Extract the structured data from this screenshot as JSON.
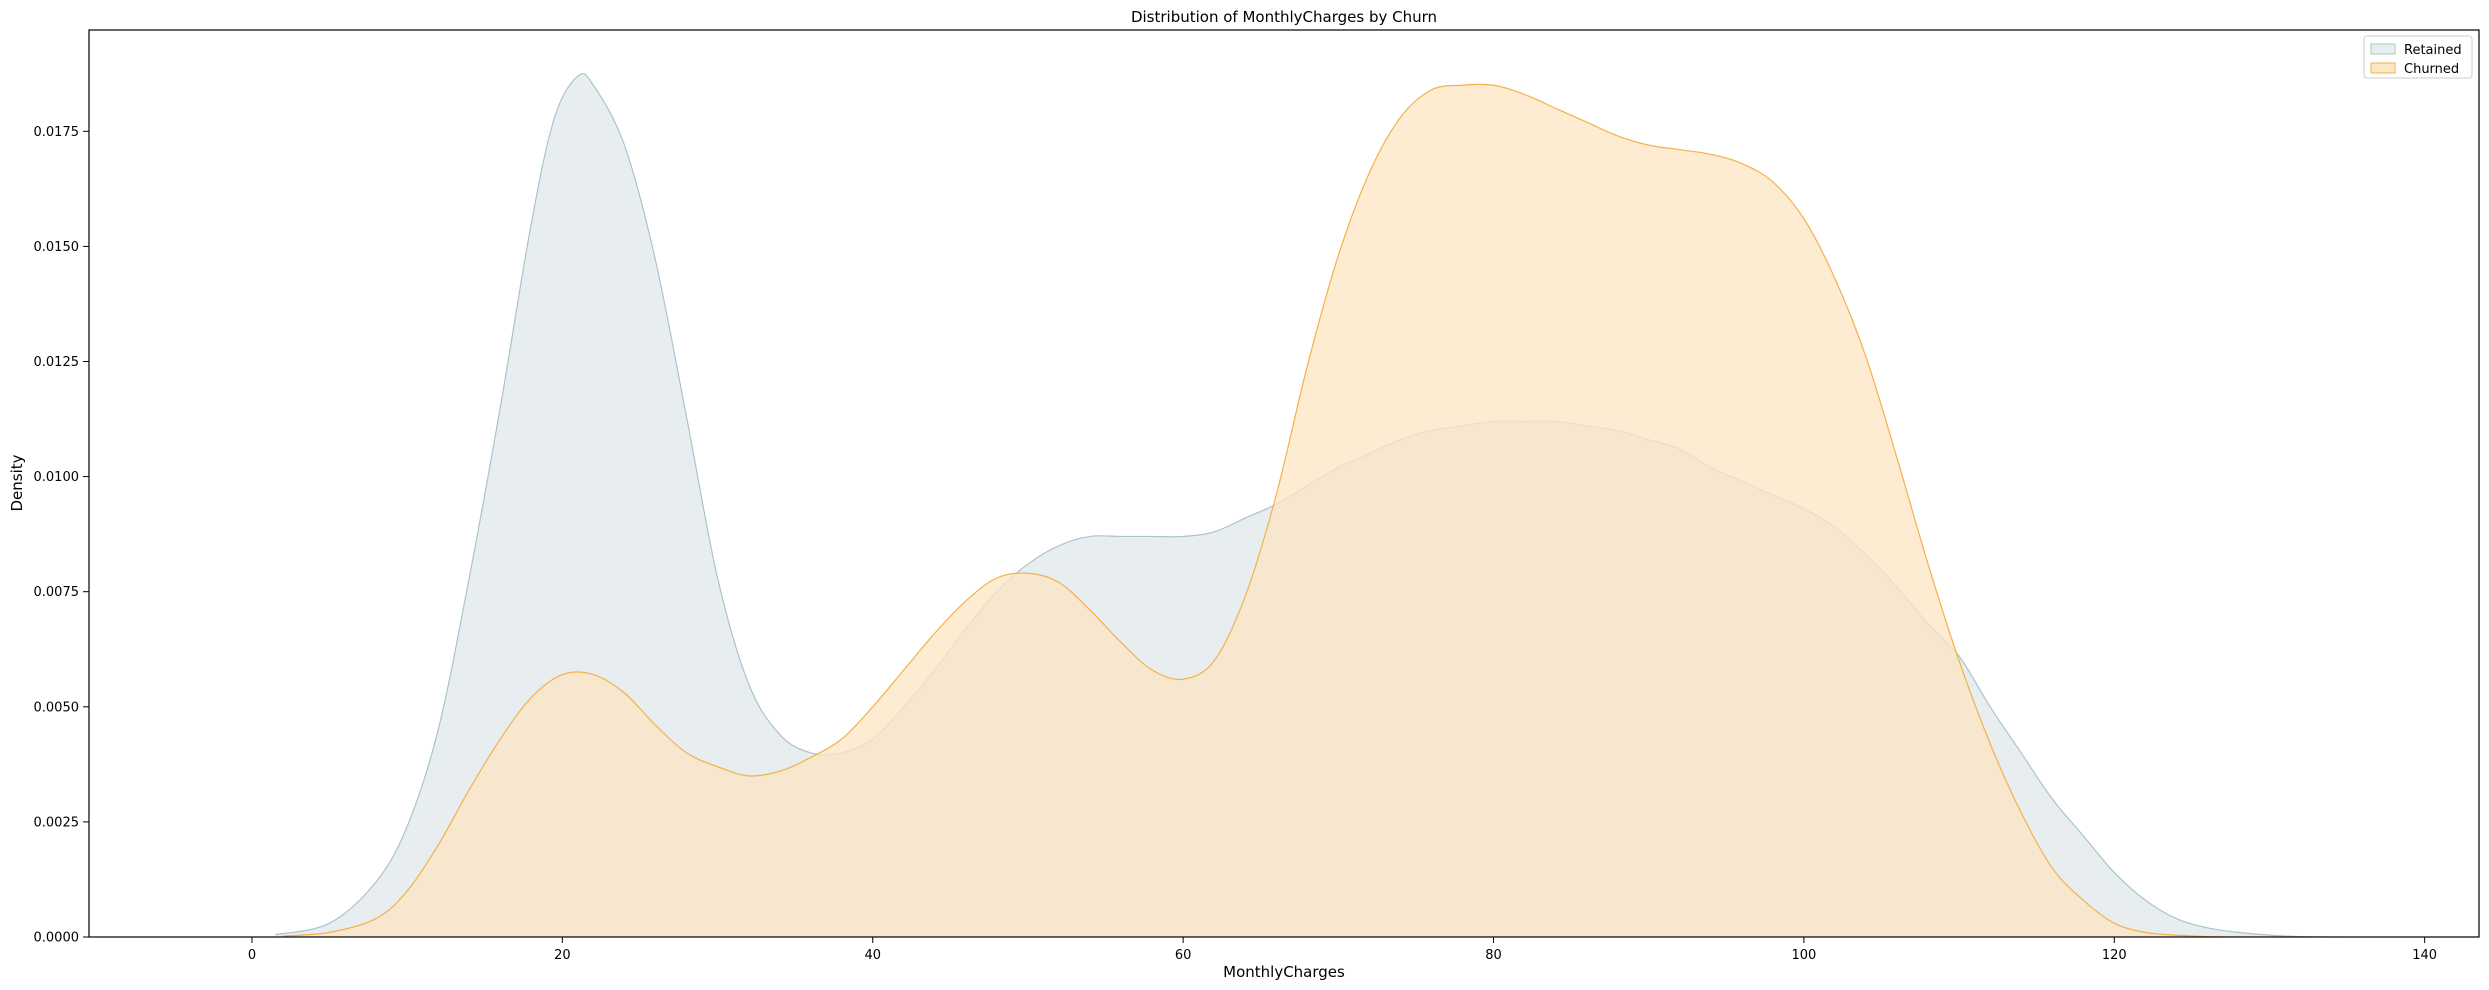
{
  "chart_data": {
    "type": "area",
    "title": "Distribution of MonthlyCharges by Churn",
    "xlabel": "MonthlyCharges",
    "ylabel": "Density",
    "xlim": [
      -10.5,
      143.5
    ],
    "ylim": [
      0,
      0.0197
    ],
    "xticks": [
      0,
      20,
      40,
      60,
      80,
      100,
      120,
      140
    ],
    "yticks": [
      0.0,
      0.0025,
      0.005,
      0.0075,
      0.01,
      0.0125,
      0.015,
      0.0175
    ],
    "ytick_labels": [
      "0.0000",
      "0.0025",
      "0.0050",
      "0.0075",
      "0.0100",
      "0.0125",
      "0.0150",
      "0.0175"
    ],
    "grid": false,
    "legend_position": "top-right",
    "series": [
      {
        "name": "Retained",
        "fill": "#e8eef0",
        "stroke": "#a9c4cb",
        "x": [
          1.5,
          5,
          8,
          10,
          12,
          14,
          16,
          18,
          19.5,
          21,
          22,
          24,
          26,
          28,
          30,
          32,
          34,
          36,
          38,
          40,
          42,
          44,
          46,
          48,
          50,
          52,
          54,
          56,
          58,
          60,
          62,
          64,
          66,
          68,
          70,
          72,
          74,
          76,
          78,
          80,
          82,
          84,
          86,
          88,
          90,
          92,
          94,
          96,
          98,
          100,
          102,
          104,
          106,
          108,
          110,
          112,
          114,
          116,
          118,
          120,
          122,
          124,
          126,
          128,
          130,
          132,
          135
        ],
        "y": [
          5e-05,
          0.0003,
          0.0012,
          0.0024,
          0.0045,
          0.0078,
          0.0115,
          0.0155,
          0.0178,
          0.0187,
          0.0185,
          0.0172,
          0.0147,
          0.0113,
          0.0078,
          0.0055,
          0.0044,
          0.004,
          0.004,
          0.0043,
          0.005,
          0.0058,
          0.0067,
          0.0075,
          0.0081,
          0.0085,
          0.0087,
          0.0087,
          0.0087,
          0.0087,
          0.0088,
          0.0091,
          0.0094,
          0.0098,
          0.0102,
          0.0105,
          0.0108,
          0.011,
          0.0111,
          0.0112,
          0.0112,
          0.0112,
          0.0111,
          0.011,
          0.0108,
          0.0106,
          0.0102,
          0.0099,
          0.0096,
          0.0093,
          0.0089,
          0.0083,
          0.0076,
          0.0068,
          0.0061,
          0.005,
          0.004,
          0.003,
          0.0022,
          0.0014,
          0.0008,
          0.0004,
          0.0002,
          0.0001,
          4e-05,
          1e-05,
          0.0
        ]
      },
      {
        "name": "Churned",
        "fill": "#fde6c5",
        "stroke": "#f5b04a",
        "x": [
          2,
          5,
          8,
          10,
          12,
          14,
          16,
          18,
          20,
          22,
          24,
          26,
          28,
          30,
          32,
          34,
          36,
          38,
          40,
          42,
          44,
          46,
          48,
          50,
          52,
          54,
          56,
          58,
          60,
          62,
          64,
          66,
          68,
          70,
          72,
          74,
          76,
          78,
          80,
          82,
          84,
          86,
          88,
          90,
          92,
          94,
          96,
          98,
          100,
          102,
          104,
          106,
          108,
          110,
          112,
          114,
          116,
          118,
          120,
          122,
          124,
          126,
          128,
          130,
          132
        ],
        "y": [
          2e-05,
          0.0001,
          0.0004,
          0.001,
          0.002,
          0.0032,
          0.0043,
          0.0052,
          0.0057,
          0.0057,
          0.0053,
          0.0046,
          0.004,
          0.0037,
          0.0035,
          0.0036,
          0.0039,
          0.0043,
          0.005,
          0.0058,
          0.0066,
          0.0073,
          0.0078,
          0.0079,
          0.0077,
          0.0071,
          0.0064,
          0.0058,
          0.0056,
          0.006,
          0.0074,
          0.0096,
          0.0124,
          0.0148,
          0.0166,
          0.0178,
          0.0184,
          0.0185,
          0.0185,
          0.0183,
          0.018,
          0.0177,
          0.0174,
          0.0172,
          0.0171,
          0.017,
          0.0168,
          0.0164,
          0.0156,
          0.0143,
          0.0126,
          0.0104,
          0.0081,
          0.006,
          0.0042,
          0.0027,
          0.0015,
          0.0008,
          0.0003,
          0.0001,
          4e-05,
          1e-05,
          0.0,
          0.0,
          0.0
        ]
      }
    ]
  }
}
